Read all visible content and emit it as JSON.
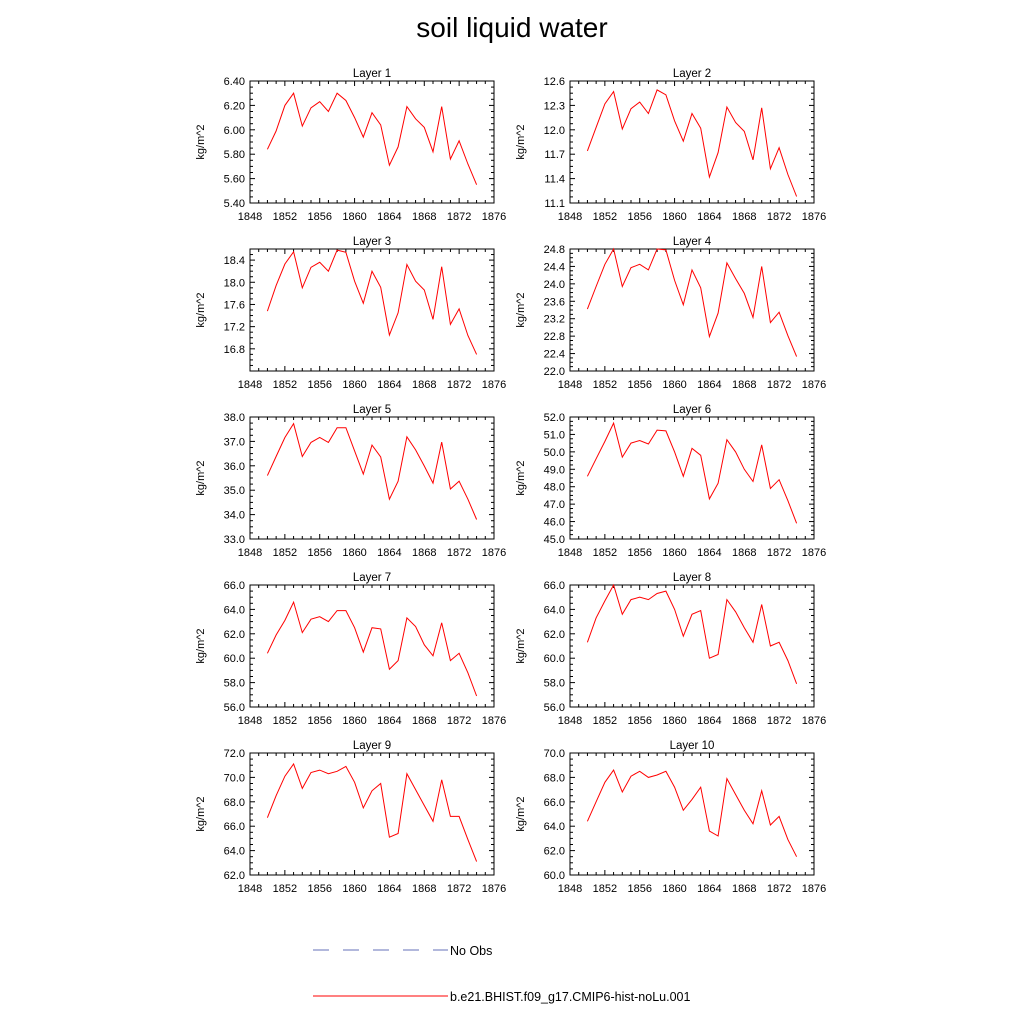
{
  "title": "soil liquid water",
  "legend": [
    {
      "label": "No Obs",
      "color": "#6670b8",
      "dash": "dashed"
    },
    {
      "label": "b.e21.BHIST.f09_g17.CMIP6-hist-noLu.001",
      "color": "#ff0000",
      "dash": "solid"
    }
  ],
  "chart_data": [
    {
      "type": "line",
      "title": "Layer 1",
      "ylabel": "kg/m^2",
      "xlim": [
        1848,
        1876
      ],
      "xticks": [
        "1848",
        "1852",
        "1856",
        "1860",
        "1864",
        "1868",
        "1872",
        "1876"
      ],
      "ylim": [
        5.4,
        6.4
      ],
      "yticks": [
        "5.40",
        "5.60",
        "5.80",
        "6.00",
        "6.20",
        "6.40"
      ],
      "series": [
        {
          "x": [
            1850,
            1851,
            1852,
            1853,
            1854,
            1855,
            1856,
            1857,
            1858,
            1859,
            1860,
            1861,
            1862,
            1863,
            1864,
            1865,
            1866,
            1867,
            1868,
            1869,
            1870,
            1871,
            1872,
            1873,
            1874
          ],
          "values": [
            5.84,
            5.99,
            6.2,
            6.3,
            6.03,
            6.18,
            6.23,
            6.15,
            6.3,
            6.24,
            6.1,
            5.94,
            6.14,
            6.04,
            5.71,
            5.86,
            6.19,
            6.09,
            6.02,
            5.82,
            6.19,
            5.76,
            5.91,
            5.72,
            5.55
          ]
        }
      ]
    },
    {
      "type": "line",
      "title": "Layer 2",
      "ylabel": "kg/m^2",
      "xlim": [
        1848,
        1876
      ],
      "xticks": [
        "1848",
        "1852",
        "1856",
        "1860",
        "1864",
        "1868",
        "1872",
        "1876"
      ],
      "ylim": [
        11.1,
        12.6
      ],
      "yticks": [
        "11.1",
        "11.4",
        "11.7",
        "12.0",
        "12.3",
        "12.6"
      ],
      "series": [
        {
          "x": [
            1850,
            1851,
            1852,
            1853,
            1854,
            1855,
            1856,
            1857,
            1858,
            1859,
            1860,
            1861,
            1862,
            1863,
            1864,
            1865,
            1866,
            1867,
            1868,
            1869,
            1870,
            1871,
            1872,
            1873,
            1874
          ],
          "values": [
            11.74,
            12.03,
            12.32,
            12.47,
            12.01,
            12.26,
            12.34,
            12.2,
            12.49,
            12.43,
            12.11,
            11.86,
            12.2,
            12.02,
            11.42,
            11.72,
            12.28,
            12.09,
            11.98,
            11.63,
            12.27,
            11.52,
            11.78,
            11.45,
            11.18
          ]
        }
      ]
    },
    {
      "type": "line",
      "title": "Layer 3",
      "ylabel": "kg/m^2",
      "xlim": [
        1848,
        1876
      ],
      "xticks": [
        "1848",
        "1852",
        "1856",
        "1860",
        "1864",
        "1868",
        "1872",
        "1876"
      ],
      "ylim": [
        16.4,
        18.6
      ],
      "yticks": [
        "16.8",
        "17.2",
        "17.6",
        "18.0",
        "18.4"
      ],
      "series": [
        {
          "x": [
            1850,
            1851,
            1852,
            1853,
            1854,
            1855,
            1856,
            1857,
            1858,
            1859,
            1860,
            1861,
            1862,
            1863,
            1864,
            1865,
            1866,
            1867,
            1868,
            1869,
            1870,
            1871,
            1872,
            1873,
            1874
          ],
          "values": [
            17.48,
            17.94,
            18.33,
            18.55,
            17.9,
            18.27,
            18.36,
            18.2,
            18.58,
            18.54,
            18.02,
            17.62,
            18.2,
            17.91,
            17.05,
            17.45,
            18.32,
            18.02,
            17.86,
            17.33,
            18.28,
            17.24,
            17.52,
            17.04,
            16.7
          ]
        }
      ]
    },
    {
      "type": "line",
      "title": "Layer 4",
      "ylabel": "kg/m^2",
      "xlim": [
        1848,
        1876
      ],
      "xticks": [
        "1848",
        "1852",
        "1856",
        "1860",
        "1864",
        "1868",
        "1872",
        "1876"
      ],
      "ylim": [
        22.0,
        24.8
      ],
      "yticks": [
        "22.0",
        "22.4",
        "22.8",
        "23.2",
        "23.6",
        "24.0",
        "24.4",
        "24.8"
      ],
      "series": [
        {
          "x": [
            1850,
            1851,
            1852,
            1853,
            1854,
            1855,
            1856,
            1857,
            1858,
            1859,
            1860,
            1861,
            1862,
            1863,
            1864,
            1865,
            1866,
            1867,
            1868,
            1869,
            1870,
            1871,
            1872,
            1873,
            1874
          ],
          "values": [
            23.42,
            23.94,
            24.45,
            24.8,
            23.94,
            24.37,
            24.45,
            24.32,
            24.8,
            24.78,
            24.08,
            23.52,
            24.32,
            23.91,
            22.79,
            23.33,
            24.48,
            24.12,
            23.78,
            23.23,
            24.4,
            23.11,
            23.35,
            22.81,
            22.33
          ]
        }
      ]
    },
    {
      "type": "line",
      "title": "Layer 5",
      "ylabel": "kg/m^2",
      "xlim": [
        1848,
        1876
      ],
      "xticks": [
        "1848",
        "1852",
        "1856",
        "1860",
        "1864",
        "1868",
        "1872",
        "1876"
      ],
      "ylim": [
        33.0,
        38.0
      ],
      "yticks": [
        "33.0",
        "34.0",
        "35.0",
        "36.0",
        "37.0",
        "38.0"
      ],
      "series": [
        {
          "x": [
            1850,
            1851,
            1852,
            1853,
            1854,
            1855,
            1856,
            1857,
            1858,
            1859,
            1860,
            1861,
            1862,
            1863,
            1864,
            1865,
            1866,
            1867,
            1868,
            1869,
            1870,
            1871,
            1872,
            1873,
            1874
          ],
          "values": [
            35.6,
            36.38,
            37.16,
            37.73,
            36.38,
            36.96,
            37.16,
            36.96,
            37.56,
            37.56,
            36.61,
            35.66,
            36.85,
            36.36,
            34.63,
            35.37,
            37.19,
            36.65,
            35.99,
            35.29,
            36.97,
            35.05,
            35.37,
            34.63,
            33.8
          ]
        }
      ]
    },
    {
      "type": "line",
      "title": "Layer 6",
      "ylabel": "kg/m^2",
      "xlim": [
        1848,
        1876
      ],
      "xticks": [
        "1848",
        "1852",
        "1856",
        "1860",
        "1864",
        "1868",
        "1872",
        "1876"
      ],
      "ylim": [
        45.0,
        52.0
      ],
      "yticks": [
        "45.0",
        "46.0",
        "47.0",
        "48.0",
        "49.0",
        "50.0",
        "51.0",
        "52.0"
      ],
      "series": [
        {
          "x": [
            1850,
            1851,
            1852,
            1853,
            1854,
            1855,
            1856,
            1857,
            1858,
            1859,
            1860,
            1861,
            1862,
            1863,
            1864,
            1865,
            1866,
            1867,
            1868,
            1869,
            1870,
            1871,
            1872,
            1873,
            1874
          ],
          "values": [
            48.6,
            49.6,
            50.6,
            51.65,
            49.7,
            50.5,
            50.65,
            50.45,
            51.25,
            51.2,
            50.0,
            48.6,
            50.2,
            49.8,
            47.3,
            48.2,
            50.7,
            50.0,
            49.0,
            48.3,
            50.4,
            47.9,
            48.4,
            47.2,
            45.9
          ]
        }
      ]
    },
    {
      "type": "line",
      "title": "Layer 7",
      "ylabel": "kg/m^2",
      "xlim": [
        1848,
        1876
      ],
      "xticks": [
        "1848",
        "1852",
        "1856",
        "1860",
        "1864",
        "1868",
        "1872",
        "1876"
      ],
      "ylim": [
        56.0,
        66.0
      ],
      "yticks": [
        "56.0",
        "58.0",
        "60.0",
        "62.0",
        "64.0",
        "66.0"
      ],
      "series": [
        {
          "x": [
            1850,
            1851,
            1852,
            1853,
            1854,
            1855,
            1856,
            1857,
            1858,
            1859,
            1860,
            1861,
            1862,
            1863,
            1864,
            1865,
            1866,
            1867,
            1868,
            1869,
            1870,
            1871,
            1872,
            1873,
            1874
          ],
          "values": [
            60.4,
            61.9,
            63.1,
            64.6,
            62.1,
            63.2,
            63.4,
            63.0,
            63.9,
            63.9,
            62.5,
            60.5,
            62.5,
            62.4,
            59.1,
            59.8,
            63.3,
            62.6,
            61.1,
            60.2,
            62.9,
            59.8,
            60.4,
            58.8,
            56.9
          ]
        }
      ]
    },
    {
      "type": "line",
      "title": "Layer 8",
      "ylabel": "kg/m^2",
      "xlim": [
        1848,
        1876
      ],
      "xticks": [
        "1848",
        "1852",
        "1856",
        "1860",
        "1864",
        "1868",
        "1872",
        "1876"
      ],
      "ylim": [
        56.0,
        66.0
      ],
      "yticks": [
        "56.0",
        "58.0",
        "60.0",
        "62.0",
        "64.0",
        "66.0"
      ],
      "series": [
        {
          "x": [
            1850,
            1851,
            1852,
            1853,
            1854,
            1855,
            1856,
            1857,
            1858,
            1859,
            1860,
            1861,
            1862,
            1863,
            1864,
            1865,
            1866,
            1867,
            1868,
            1869,
            1870,
            1871,
            1872,
            1873,
            1874
          ],
          "values": [
            61.3,
            63.3,
            64.7,
            66.0,
            63.6,
            64.8,
            65.0,
            64.8,
            65.3,
            65.5,
            64.0,
            61.8,
            63.6,
            63.9,
            60.0,
            60.3,
            64.8,
            63.8,
            62.5,
            61.3,
            64.4,
            61.0,
            61.3,
            59.8,
            57.9
          ]
        }
      ]
    },
    {
      "type": "line",
      "title": "Layer 9",
      "ylabel": "kg/m^2",
      "xlim": [
        1848,
        1876
      ],
      "xticks": [
        "1848",
        "1852",
        "1856",
        "1860",
        "1864",
        "1868",
        "1872",
        "1876"
      ],
      "ylim": [
        62.0,
        72.0
      ],
      "yticks": [
        "62.0",
        "64.0",
        "66.0",
        "68.0",
        "70.0",
        "72.0"
      ],
      "series": [
        {
          "x": [
            1850,
            1851,
            1852,
            1853,
            1854,
            1855,
            1856,
            1857,
            1858,
            1859,
            1860,
            1861,
            1862,
            1863,
            1864,
            1865,
            1866,
            1867,
            1868,
            1869,
            1870,
            1871,
            1872,
            1873,
            1874
          ],
          "values": [
            66.7,
            68.5,
            70.1,
            71.1,
            69.1,
            70.4,
            70.6,
            70.3,
            70.5,
            70.9,
            69.6,
            67.5,
            68.9,
            69.5,
            65.1,
            65.4,
            70.3,
            69.0,
            67.7,
            66.4,
            69.8,
            66.8,
            66.8,
            64.9,
            63.1
          ]
        }
      ]
    },
    {
      "type": "line",
      "title": "Layer 10",
      "ylabel": "kg/m^2",
      "xlim": [
        1848,
        1876
      ],
      "xticks": [
        "1848",
        "1852",
        "1856",
        "1860",
        "1864",
        "1868",
        "1872",
        "1876"
      ],
      "ylim": [
        60.0,
        70.0
      ],
      "yticks": [
        "60.0",
        "62.0",
        "64.0",
        "66.0",
        "68.0",
        "70.0"
      ],
      "series": [
        {
          "x": [
            1850,
            1851,
            1852,
            1853,
            1854,
            1855,
            1856,
            1857,
            1858,
            1859,
            1860,
            1861,
            1862,
            1863,
            1864,
            1865,
            1866,
            1867,
            1868,
            1869,
            1870,
            1871,
            1872,
            1873,
            1874
          ],
          "values": [
            64.4,
            66.0,
            67.6,
            68.6,
            66.8,
            68.1,
            68.5,
            68.0,
            68.2,
            68.5,
            67.2,
            65.3,
            66.2,
            67.2,
            63.6,
            63.2,
            67.9,
            66.6,
            65.3,
            64.2,
            66.9,
            64.1,
            64.8,
            62.9,
            61.5
          ]
        }
      ]
    }
  ]
}
